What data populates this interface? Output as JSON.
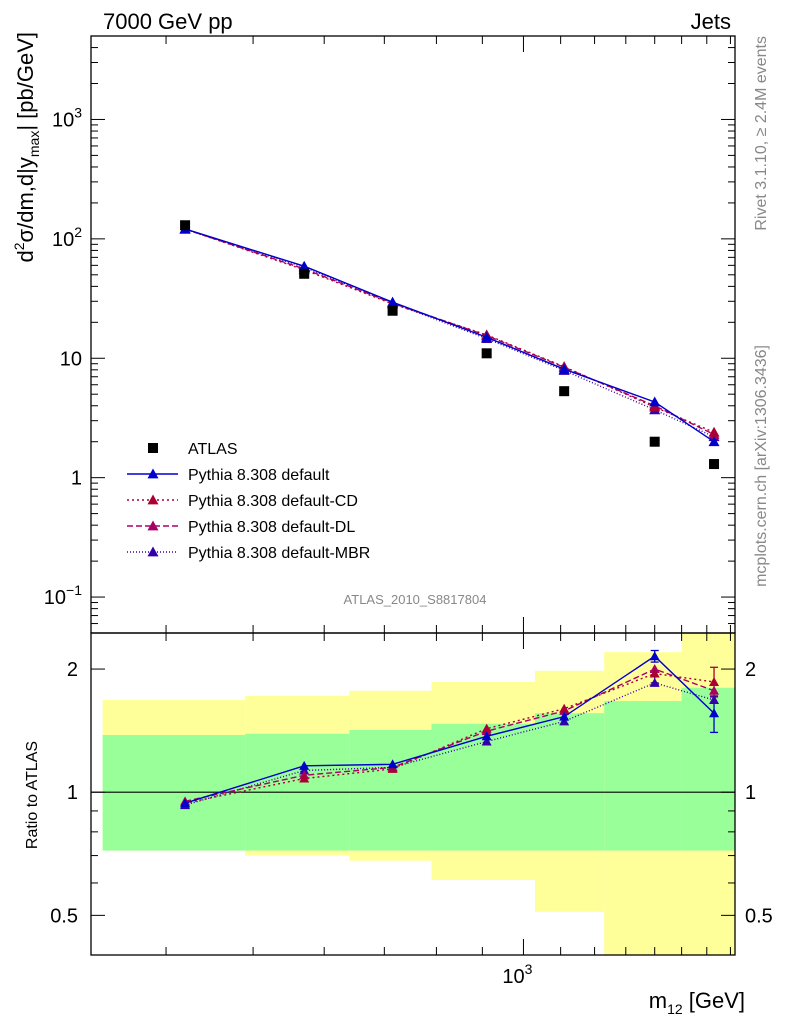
{
  "header": {
    "energy_label": "7000 GeV pp",
    "process_label": "Jets"
  },
  "side_labels": {
    "rivet": "Rivet 3.1.10, ≥ 2.4M events",
    "mcplots": "mcplots.cern.ch [arXiv:1306.3436]"
  },
  "analysis_id": "ATLAS_2010_S8817804",
  "chart_data": [
    {
      "type": "scatter",
      "panel": "main",
      "yscale": "log",
      "xscale": "log",
      "ylabel_parts": {
        "d": "d",
        "sup": "2",
        "rest": "σ/dm,d|y",
        "sub": "max",
        "end": "| [pb/GeV]"
      },
      "xlabel_parts": {
        "m": "m",
        "sub": "12",
        "unit": " [GeV]"
      },
      "ylim": [
        0.05,
        5000
      ],
      "xlim": [
        330,
        1720
      ],
      "yticks": [
        {
          "v": 0.1,
          "base": "10",
          "exp": "−1"
        },
        {
          "v": 1,
          "base": "1",
          "exp": ""
        },
        {
          "v": 10,
          "base": "10",
          "exp": ""
        },
        {
          "v": 100,
          "base": "10",
          "exp": "2"
        },
        {
          "v": 1000,
          "base": "10",
          "exp": "3"
        }
      ],
      "xtick_label": {
        "v": 1000,
        "base": "10",
        "exp": "3"
      },
      "x": [
        420,
        570,
        715,
        910,
        1110,
        1400,
        1630
      ],
      "series": [
        {
          "name": "ATLAS",
          "color": "#000000",
          "marker": "square",
          "dash": "none",
          "values": [
            130,
            51,
            25,
            11,
            5.3,
            2.0,
            1.3
          ]
        },
        {
          "name": "Pythia 8.308 default",
          "color": "#0000cc",
          "marker": "triangle",
          "dash": "none",
          "values": [
            121,
            59,
            29.5,
            15.0,
            8.1,
            4.3,
            2.0
          ]
        },
        {
          "name": "Pythia 8.308 default-CD",
          "color": "#aa0033",
          "marker": "triangle",
          "dash": "2,3",
          "values": [
            121,
            55,
            28.5,
            15.7,
            8.5,
            3.9,
            2.4
          ]
        },
        {
          "name": "Pythia 8.308 default-DL",
          "color": "#aa0066",
          "marker": "triangle",
          "dash": "6,3",
          "values": [
            121,
            56,
            29.0,
            15.5,
            8.4,
            4.0,
            2.3
          ]
        },
        {
          "name": "Pythia 8.308 default-MBR",
          "color": "#3300aa",
          "marker": "triangle",
          "dash": "1,2",
          "values": [
            120,
            58,
            29.0,
            14.6,
            7.9,
            3.7,
            2.2
          ]
        }
      ]
    },
    {
      "type": "scatter",
      "panel": "ratio",
      "ylabel": "Ratio to ATLAS",
      "yscale": "log",
      "ylim": [
        0.4,
        2.45
      ],
      "yticks": [
        {
          "v": 0.5,
          "label": "0.5"
        },
        {
          "v": 1,
          "label": "1"
        },
        {
          "v": 2,
          "label": "2"
        }
      ],
      "bin_edges": [
        340,
        490,
        640,
        790,
        1030,
        1230,
        1500,
        1720
      ],
      "bands": {
        "green_color": "#99ff99",
        "yellow_color": "#ffff99",
        "green_lo": [
          0.72,
          0.72,
          0.72,
          0.72,
          0.72,
          0.72,
          0.72
        ],
        "green_hi": [
          1.38,
          1.39,
          1.42,
          1.47,
          1.56,
          1.67,
          1.8
        ],
        "yellow_lo": [
          0.72,
          0.7,
          0.68,
          0.61,
          0.51,
          0.4,
          0.4
        ],
        "yellow_hi": [
          1.68,
          1.72,
          1.77,
          1.86,
          1.98,
          2.2,
          2.45
        ]
      },
      "error_bars": [
        {
          "series": "Pythia 8.308 default",
          "x": 1400,
          "lo": 2.08,
          "hi": 2.22
        },
        {
          "series": "Pythia 8.308 default",
          "x": 1630,
          "lo": 1.4,
          "hi": 1.71
        },
        {
          "series": "Pythia 8.308 default-CD",
          "x": 1630,
          "lo": 1.72,
          "hi": 2.02
        },
        {
          "series": "Pythia 8.308 default-MBR",
          "x": 1400,
          "lo": 1.85,
          "hi": 1.98
        }
      ],
      "series": [
        {
          "name": "Pythia 8.308 default",
          "color": "#0000cc",
          "dash": "none",
          "values": [
            0.94,
            1.16,
            1.17,
            1.37,
            1.53,
            2.15,
            1.56
          ]
        },
        {
          "name": "Pythia 8.308 default-CD",
          "color": "#aa0033",
          "dash": "2,3",
          "values": [
            0.94,
            1.08,
            1.14,
            1.43,
            1.6,
            1.95,
            1.86
          ]
        },
        {
          "name": "Pythia 8.308 default-DL",
          "color": "#aa0066",
          "dash": "6,3",
          "values": [
            0.95,
            1.1,
            1.15,
            1.41,
            1.58,
            2.0,
            1.77
          ]
        },
        {
          "name": "Pythia 8.308 default-MBR",
          "color": "#3300aa",
          "dash": "1,2",
          "values": [
            0.93,
            1.13,
            1.15,
            1.33,
            1.49,
            1.85,
            1.68
          ]
        }
      ]
    }
  ]
}
